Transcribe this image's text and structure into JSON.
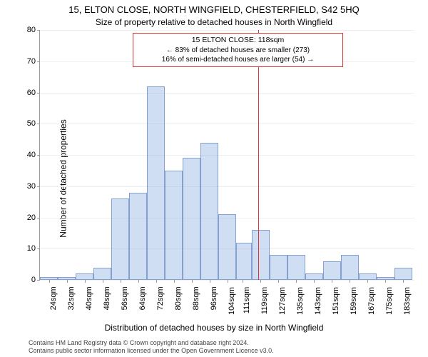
{
  "titles": {
    "line1": "15, ELTON CLOSE, NORTH WINGFIELD, CHESTERFIELD, S42 5HQ",
    "line2": "Size of property relative to detached houses in North Wingfield"
  },
  "chart": {
    "type": "histogram",
    "ylabel": "Number of detached properties",
    "xlabel": "Distribution of detached houses by size in North Wingfield",
    "ylim": [
      0,
      80
    ],
    "ytick_step": 10,
    "label_fontsize": 12,
    "tick_fontsize": 11,
    "background_color": "#ffffff",
    "grid_color": "#eeeeee",
    "bar_fill": "rgba(120,160,220,0.35)",
    "bar_border": "rgba(70,110,180,0.55)",
    "marker_line_color": "#d33",
    "marker_x": 118,
    "xmin": 20,
    "xmax": 188,
    "categories": [
      "24sqm",
      "32sqm",
      "40sqm",
      "48sqm",
      "56sqm",
      "64sqm",
      "72sqm",
      "80sqm",
      "88sqm",
      "96sqm",
      "104sqm",
      "111sqm",
      "119sqm",
      "127sqm",
      "135sqm",
      "143sqm",
      "151sqm",
      "159sqm",
      "167sqm",
      "175sqm",
      "183sqm"
    ],
    "x_tick_positions": [
      24,
      32,
      40,
      48,
      56,
      64,
      72,
      80,
      88,
      96,
      104,
      111,
      119,
      127,
      135,
      143,
      151,
      159,
      167,
      175,
      183
    ],
    "bars": [
      {
        "x0": 20,
        "x1": 28,
        "v": 1
      },
      {
        "x0": 28,
        "x1": 36,
        "v": 1
      },
      {
        "x0": 36,
        "x1": 44,
        "v": 2
      },
      {
        "x0": 44,
        "x1": 52,
        "v": 4
      },
      {
        "x0": 52,
        "x1": 60,
        "v": 26
      },
      {
        "x0": 60,
        "x1": 68,
        "v": 28
      },
      {
        "x0": 68,
        "x1": 76,
        "v": 62
      },
      {
        "x0": 76,
        "x1": 84,
        "v": 35
      },
      {
        "x0": 84,
        "x1": 92,
        "v": 39
      },
      {
        "x0": 92,
        "x1": 100,
        "v": 44
      },
      {
        "x0": 100,
        "x1": 108,
        "v": 21
      },
      {
        "x0": 108,
        "x1": 115,
        "v": 12
      },
      {
        "x0": 115,
        "x1": 123,
        "v": 16
      },
      {
        "x0": 123,
        "x1": 131,
        "v": 8
      },
      {
        "x0": 131,
        "x1": 139,
        "v": 8
      },
      {
        "x0": 139,
        "x1": 147,
        "v": 2
      },
      {
        "x0": 147,
        "x1": 155,
        "v": 6
      },
      {
        "x0": 155,
        "x1": 163,
        "v": 8
      },
      {
        "x0": 163,
        "x1": 171,
        "v": 2
      },
      {
        "x0": 171,
        "x1": 179,
        "v": 1
      },
      {
        "x0": 179,
        "x1": 187,
        "v": 4
      }
    ]
  },
  "annotation": {
    "line1": "15 ELTON CLOSE: 118sqm",
    "line2": "← 83% of detached houses are smaller (273)",
    "line3": "16% of semi-detached houses are larger (54) →"
  },
  "license": {
    "line1": "Contains HM Land Registry data © Crown copyright and database right 2024.",
    "line2": "Contains public sector information licensed under the Open Government Licence v3.0."
  }
}
